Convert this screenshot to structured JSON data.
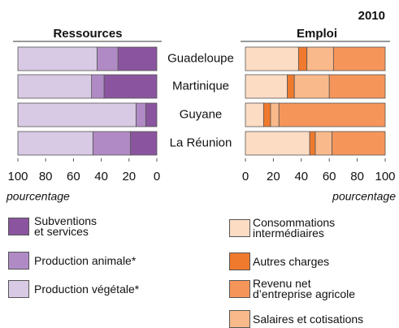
{
  "chart_data": {
    "type": "bar",
    "orientation": "horizontal",
    "stacked": true,
    "title": "2010",
    "categories": [
      "Guadeloupe",
      "Martinique",
      "Guyane",
      "La Réunion"
    ],
    "panels": [
      {
        "title": "Ressources",
        "xlabel": "pourcentage",
        "xlim": [
          100,
          0
        ],
        "xticks": [
          100,
          80,
          60,
          40,
          20,
          0
        ],
        "series": [
          {
            "name": "Subventions\net services",
            "color": "#8a559e",
            "values": [
              28,
              38,
              8,
              19
            ]
          },
          {
            "name": "Production animale*",
            "color": "#b08ac4",
            "values": [
              15,
              9,
              7,
              27
            ]
          },
          {
            "name": "Production végétale*",
            "color": "#d8c9e4",
            "values": [
              57,
              53,
              85,
              54
            ]
          }
        ]
      },
      {
        "title": "Emploi",
        "xlabel": "pourcentage",
        "xlim": [
          0,
          100
        ],
        "xticks": [
          0,
          20,
          40,
          60,
          80,
          100
        ],
        "series": [
          {
            "name": "Consommations\nintermédiaires",
            "color": "#fddcc4",
            "values": [
              38,
              30,
              13,
              46
            ]
          },
          {
            "name": "Autres charges",
            "color": "#ef7a2e",
            "values": [
              6,
              5,
              5,
              4
            ]
          },
          {
            "name": "Salaires et cotisations",
            "color": "#f9b98b",
            "values": [
              19,
              25,
              6,
              12
            ]
          },
          {
            "name": "Revenu net\nd’entreprise agricole",
            "color": "#f6955a",
            "values": [
              37,
              40,
              76,
              38
            ]
          }
        ]
      }
    ]
  }
}
